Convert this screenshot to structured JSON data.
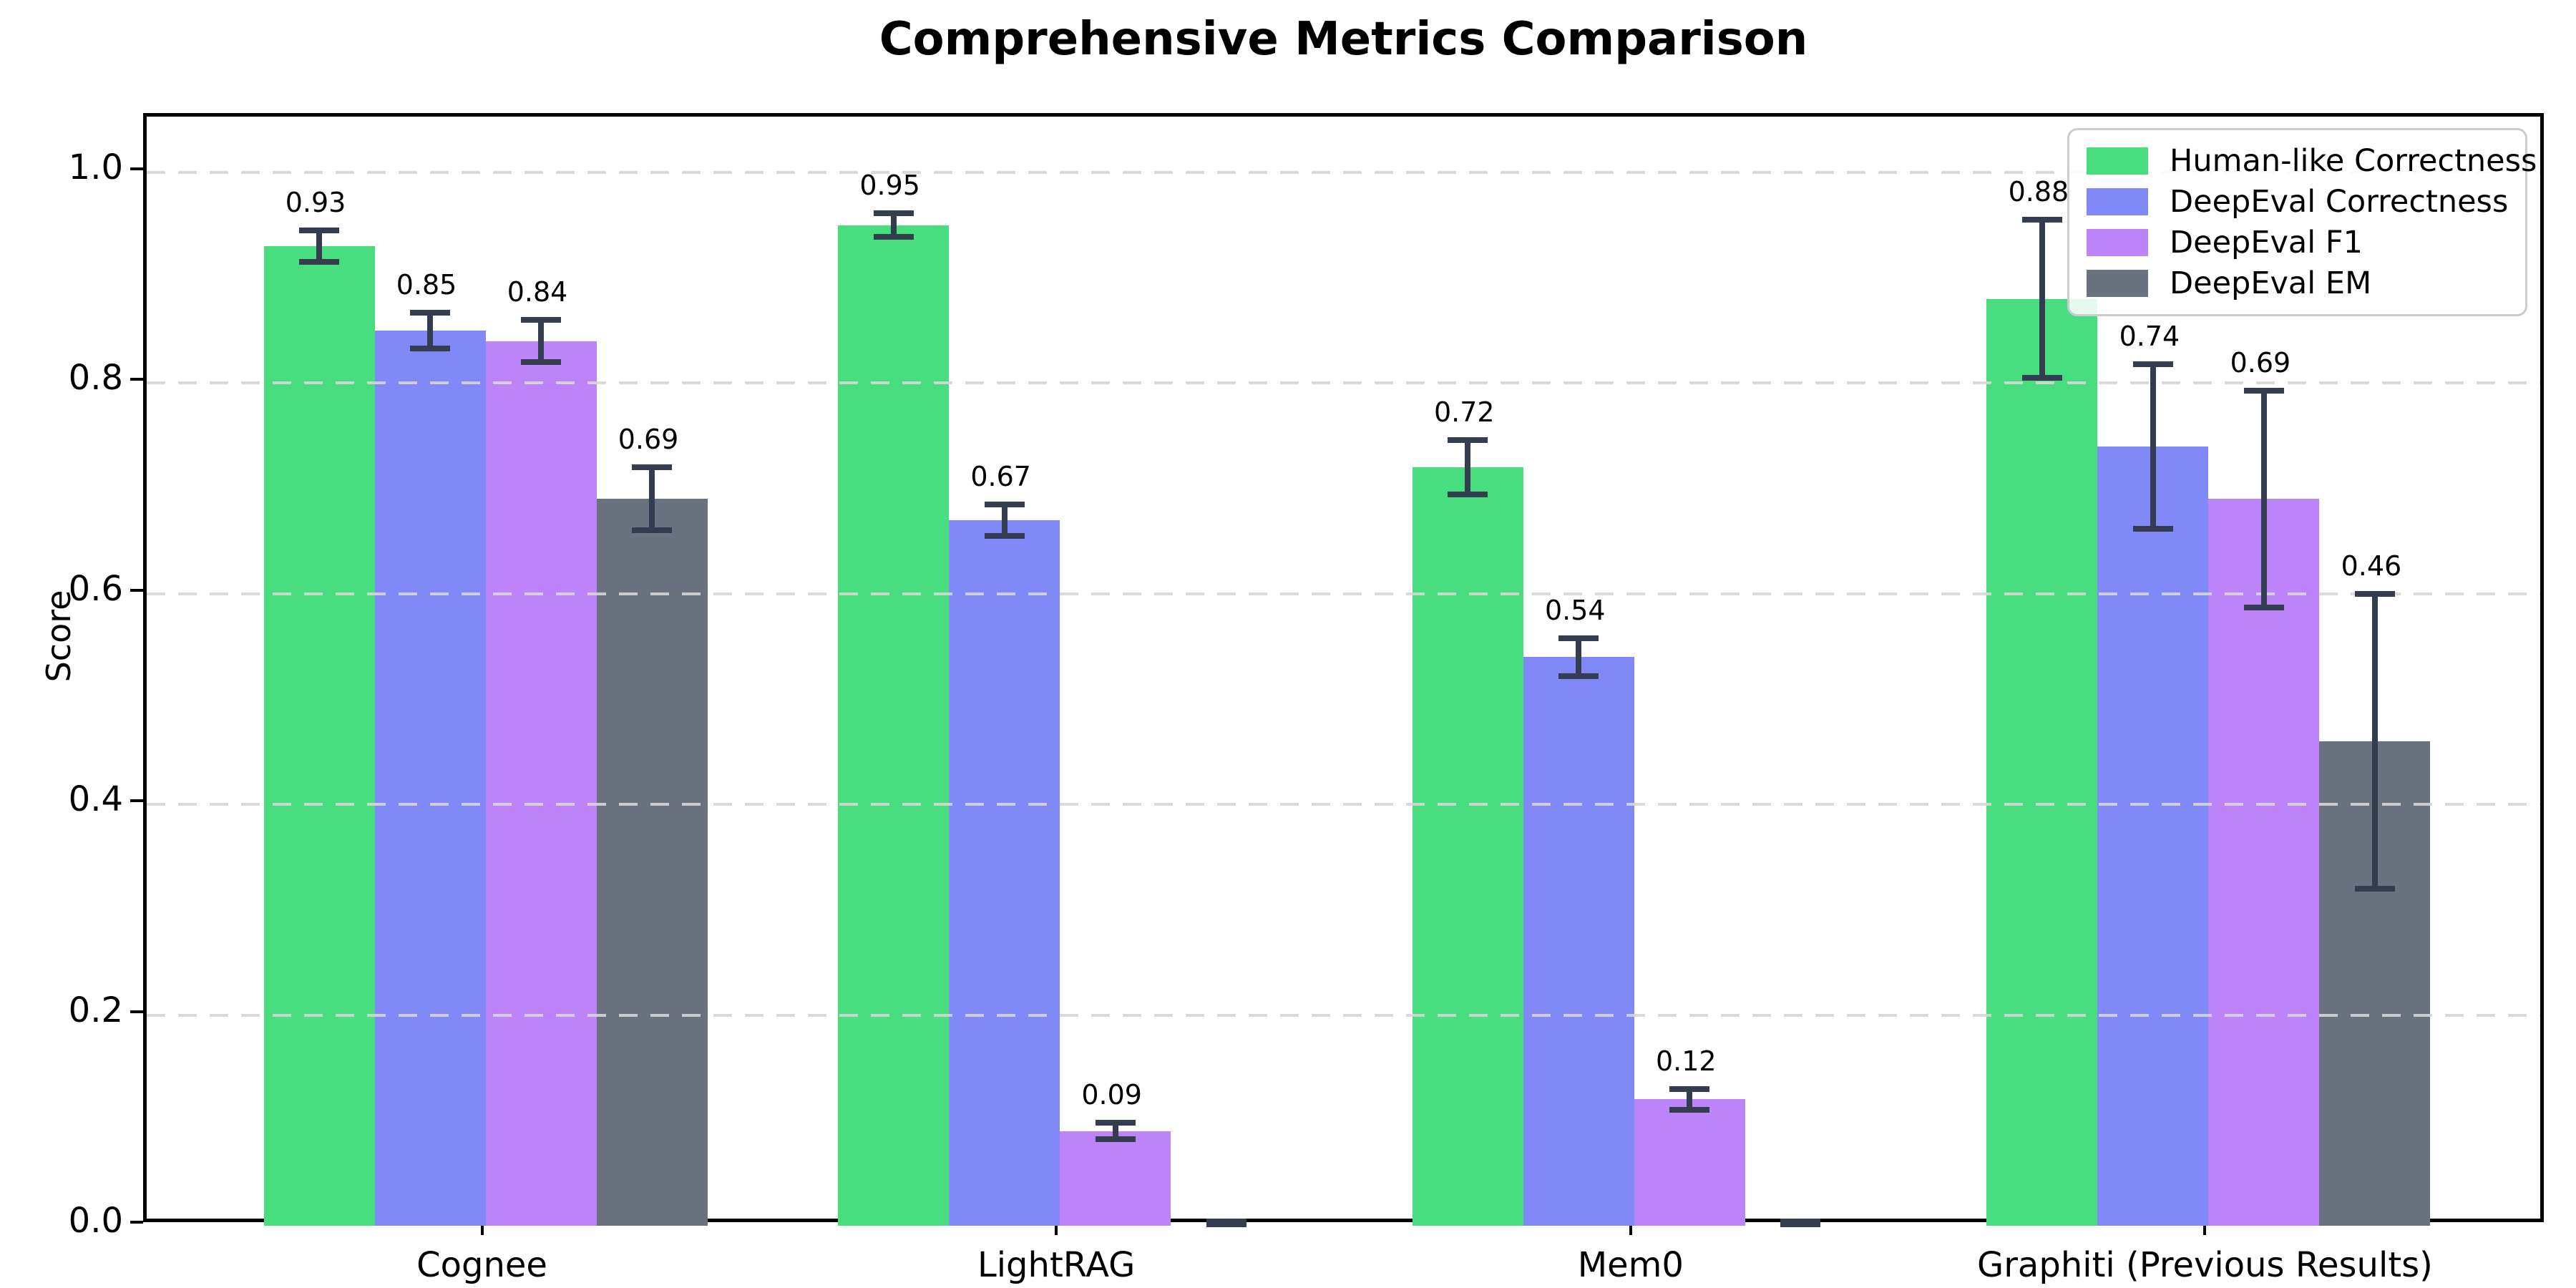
{
  "figure": {
    "title": "Comprehensive Metrics Comparison",
    "ylabel": "Score"
  },
  "chart_data": {
    "type": "bar",
    "title": "Comprehensive Metrics Comparison",
    "xlabel": "",
    "ylabel": "Score",
    "categories": [
      "Cognee",
      "LightRAG",
      "Mem0",
      "Graphiti (Previous Results)"
    ],
    "series": [
      {
        "name": "Human-like Correctness",
        "color": "#48dd7f",
        "values": [
          0.93,
          0.95,
          0.72,
          0.88
        ],
        "errors": [
          0.015,
          0.011,
          0.026,
          0.075
        ],
        "bar_labels": [
          "0.93",
          "0.95",
          "0.72",
          "0.88"
        ]
      },
      {
        "name": "DeepEval Correctness",
        "color": "#8189f8",
        "values": [
          0.85,
          0.67,
          0.54,
          0.74
        ],
        "errors": [
          0.017,
          0.015,
          0.018,
          0.078
        ],
        "bar_labels": [
          "0.85",
          "0.67",
          "0.54",
          "0.74"
        ]
      },
      {
        "name": "DeepEval F1",
        "color": "#bd84fa",
        "values": [
          0.84,
          0.09,
          0.12,
          0.69
        ],
        "errors": [
          0.02,
          0.008,
          0.01,
          0.103
        ],
        "bar_labels": [
          "0.84",
          "0.09",
          "0.12",
          "0.69"
        ]
      },
      {
        "name": "DeepEval EM",
        "color": "#6a7280",
        "values": [
          0.69,
          0.0,
          0.0,
          0.46
        ],
        "errors": [
          0.03,
          0.004,
          0.004,
          0.14
        ],
        "bar_labels": [
          "0.69",
          "",
          "",
          "0.46"
        ]
      }
    ],
    "ylim": [
      0,
      1.05
    ],
    "yticks": [
      0.0,
      0.2,
      0.4,
      0.6,
      0.8,
      1.0
    ],
    "ytick_labels": [
      "0.0",
      "0.2",
      "0.4",
      "0.6",
      "0.8",
      "1.0"
    ],
    "grid": "horizontal-dashed",
    "legend_position": "upper right",
    "legend_entries": [
      "Human-like Correctness",
      "DeepEval Correctness",
      "DeepEval F1",
      "DeepEval EM"
    ],
    "errorbar_color": "#333d4f",
    "grid_color": "#d6d6d6",
    "background_color": "#ffffff"
  }
}
